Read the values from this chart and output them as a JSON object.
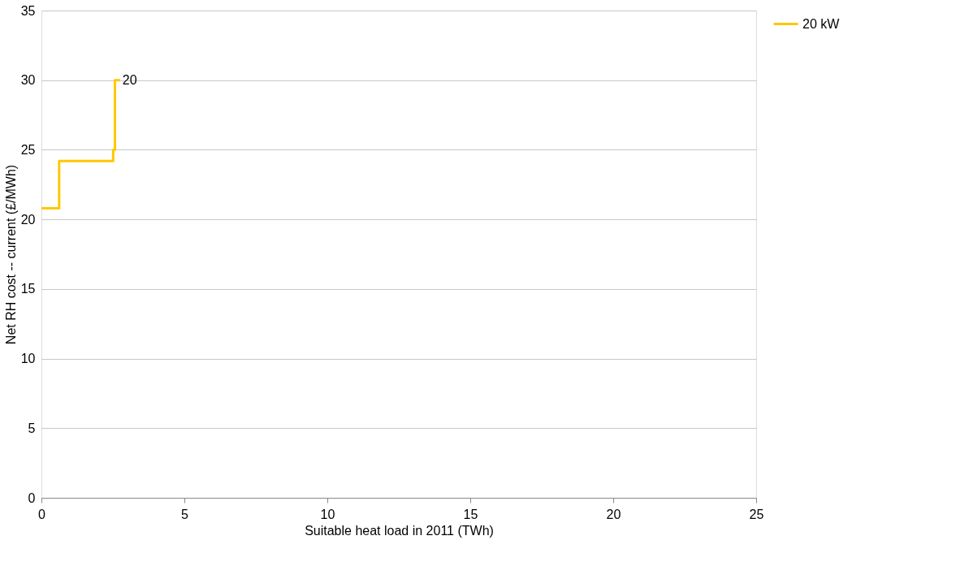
{
  "chart_data": {
    "type": "step",
    "xlabel": "Suitable heat load in 2011 (TWh)",
    "ylabel": "Net RH cost -- current (£/MWh)",
    "series": [
      {
        "name": "20 kW",
        "color": "#ffc800",
        "x": [
          0,
          0.62,
          2.51,
          2.57,
          2.75
        ],
        "values": [
          20.8,
          24.2,
          25,
          30,
          30
        ]
      }
    ],
    "annotations": [
      {
        "text": "20",
        "x": 2.75,
        "y": 30
      }
    ],
    "xlim": [
      0,
      25
    ],
    "xticks": [
      0,
      5,
      10,
      15,
      20,
      25
    ],
    "ylim": [
      0,
      35
    ],
    "yticks": [
      0,
      5,
      10,
      15,
      20,
      25,
      30,
      35
    ],
    "grid": "y",
    "legend": "right",
    "line_style": "solid",
    "marker": "none"
  }
}
